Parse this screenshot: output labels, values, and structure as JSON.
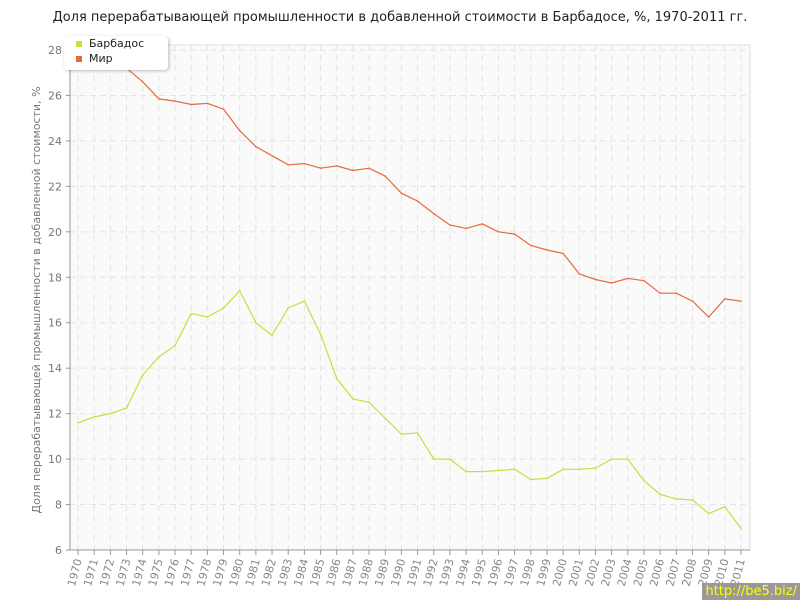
{
  "chart_data": {
    "type": "line",
    "title": "Доля перерабатывающей промышленности в добавленной стоимости в Барбадосе, %, 1970-2011 гг.",
    "xlabel": "",
    "ylabel": "Доля перерабатывающей промышленности в добавленной стоимости, %",
    "ylim": [
      6,
      28
    ],
    "yticks": [
      "6",
      "8",
      "10",
      "12",
      "14",
      "16",
      "18",
      "20",
      "22",
      "24",
      "26",
      "28"
    ],
    "grid": true,
    "legend_position": "top-left",
    "x": [
      "1970",
      "1971",
      "1972",
      "1973",
      "1974",
      "1975",
      "1976",
      "1977",
      "1978",
      "1979",
      "1980",
      "1981",
      "1982",
      "1983",
      "1984",
      "1985",
      "1986",
      "1987",
      "1988",
      "1989",
      "1990",
      "1991",
      "1992",
      "1993",
      "1994",
      "1995",
      "1996",
      "1997",
      "1998",
      "1999",
      "2000",
      "2001",
      "2002",
      "2003",
      "2004",
      "2005",
      "2006",
      "2007",
      "2008",
      "2009",
      "2010",
      "2011"
    ],
    "series": [
      {
        "name": "Барбадос",
        "color": "#c5e03b",
        "values": [
          11.6,
          11.85,
          12.0,
          12.25,
          13.7,
          14.5,
          15.0,
          16.4,
          16.25,
          16.65,
          17.4,
          16.0,
          15.45,
          16.65,
          16.95,
          15.5,
          13.55,
          12.65,
          12.5,
          11.8,
          11.1,
          11.15,
          10.0,
          10.0,
          9.45,
          9.45,
          9.5,
          9.55,
          9.1,
          9.15,
          9.55,
          9.55,
          9.6,
          10.0,
          10.0,
          9.05,
          8.45,
          8.25,
          8.2,
          7.6,
          7.9,
          6.95
        ]
      },
      {
        "name": "Мир",
        "color": "#e8693a",
        "values": [
          27.7,
          27.6,
          27.5,
          27.2,
          26.6,
          25.85,
          25.75,
          25.6,
          25.65,
          25.4,
          24.45,
          23.75,
          23.35,
          22.95,
          23.0,
          22.8,
          22.9,
          22.7,
          22.8,
          22.45,
          21.7,
          21.35,
          20.8,
          20.3,
          20.15,
          20.35,
          20.0,
          19.9,
          19.4,
          19.2,
          19.05,
          18.15,
          17.9,
          17.75,
          17.95,
          17.85,
          17.3,
          17.3,
          16.95,
          16.25,
          17.05,
          16.95
        ]
      }
    ]
  },
  "watermark": "http://be5.biz/"
}
